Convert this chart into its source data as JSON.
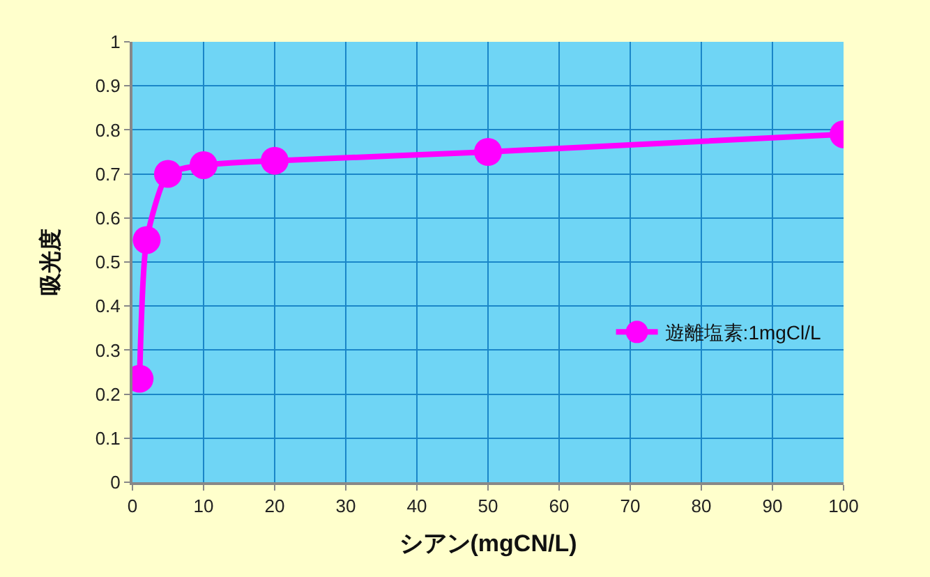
{
  "chart_data": {
    "type": "line",
    "xlabel": "シアン(mgCN/L)",
    "ylabel": "吸光度",
    "x": [
      1,
      2,
      5,
      10,
      20,
      50,
      100
    ],
    "series": [
      {
        "name": "遊離塩素:1mgCl/L",
        "color": "#ff00ff",
        "values": [
          0.235,
          0.55,
          0.7,
          0.72,
          0.73,
          0.75,
          0.79
        ]
      }
    ],
    "xlim": [
      0,
      100
    ],
    "xticks": [
      0,
      10,
      20,
      30,
      40,
      50,
      60,
      70,
      80,
      90,
      100
    ],
    "ylim": [
      0,
      1
    ],
    "yticks": [
      0,
      0.1,
      0.2,
      0.3,
      0.4,
      0.5,
      0.6,
      0.7,
      0.8,
      0.9,
      1
    ],
    "grid": true,
    "legend": "right",
    "marker": "circle",
    "line_style": "solid"
  }
}
